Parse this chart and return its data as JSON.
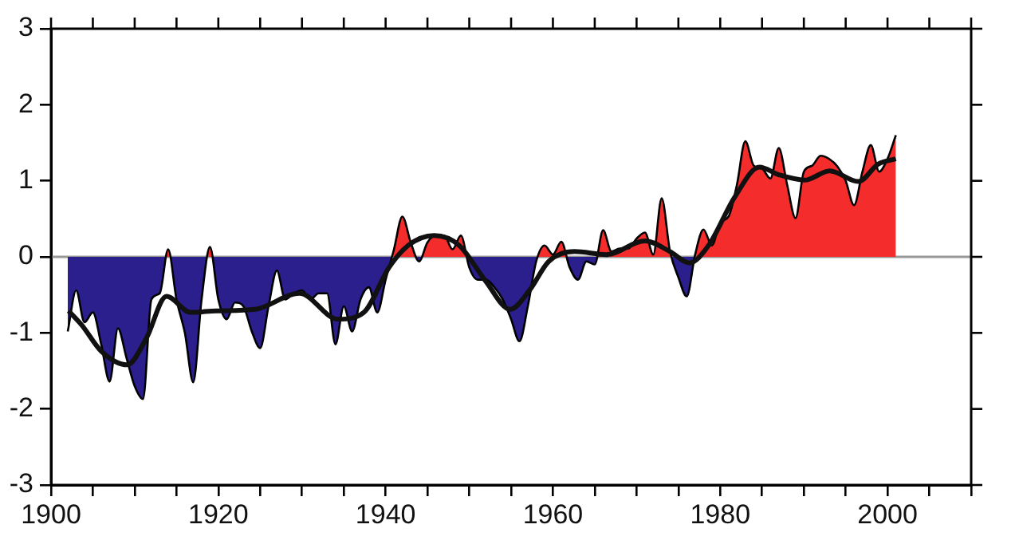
{
  "chart_data": {
    "type": "area",
    "xlim": [
      1900,
      2010
    ],
    "ylim": [
      -3,
      3
    ],
    "xticks": [
      1900,
      {
        "value": 1905,
        "label": null
      },
      {
        "value": 1910,
        "label": null
      },
      {
        "value": 1915,
        "label": null
      },
      1920,
      {
        "value": 1925,
        "label": null
      },
      {
        "value": 1930,
        "label": null
      },
      {
        "value": 1935,
        "label": null
      },
      1940,
      {
        "value": 1945,
        "label": null
      },
      {
        "value": 1950,
        "label": null
      },
      {
        "value": 1955,
        "label": null
      },
      1960,
      {
        "value": 1965,
        "label": null
      },
      {
        "value": 1970,
        "label": null
      },
      {
        "value": 1975,
        "label": null
      },
      1980,
      {
        "value": 1985,
        "label": null
      },
      {
        "value": 1990,
        "label": null
      },
      {
        "value": 1995,
        "label": null
      },
      2000,
      {
        "value": 2005,
        "label": null
      },
      {
        "value": 2010,
        "label": null
      }
    ],
    "yticks": [
      -3,
      -2,
      -1,
      0,
      1,
      2,
      3
    ],
    "grid": false,
    "legend": false,
    "marker": "none",
    "line_style": "solid",
    "ref_lines": [
      {
        "axis": "y",
        "value": 0,
        "color": "#999999"
      }
    ],
    "series": [
      {
        "color": "#000000",
        "x": [
          1902,
          1903,
          1904,
          1905,
          1906,
          1907,
          1908,
          1909,
          1910,
          1911,
          1912,
          1913,
          1914,
          1915,
          1916,
          1917,
          1918,
          1919,
          1920,
          1921,
          1922,
          1923,
          1924,
          1925,
          1926,
          1927,
          1928,
          1929,
          1930,
          1931,
          1932,
          1933,
          1934,
          1935,
          1936,
          1937,
          1938,
          1939,
          1940,
          1941,
          1942,
          1943,
          1944,
          1945,
          1946,
          1947,
          1948,
          1949,
          1950,
          1951,
          1952,
          1953,
          1954,
          1955,
          1956,
          1957,
          1958,
          1959,
          1960,
          1961,
          1962,
          1963,
          1964,
          1965,
          1966,
          1967,
          1968,
          1969,
          1970,
          1971,
          1972,
          1973,
          1974,
          1975,
          1976,
          1977,
          1978,
          1979,
          1980,
          1981,
          1982,
          1983,
          1984,
          1985,
          1986,
          1987,
          1988,
          1989,
          1990,
          1991,
          1992,
          1993,
          1994,
          1995,
          1996,
          1997,
          1998,
          1999,
          2000,
          2001
        ],
        "values": [
          -0.98,
          -0.44,
          -0.86,
          -0.73,
          -1.15,
          -1.64,
          -0.94,
          -1.32,
          -1.7,
          -1.87,
          -0.56,
          -0.48,
          0.1,
          -0.56,
          -1.0,
          -1.65,
          -0.56,
          0.13,
          -0.56,
          -0.82,
          -0.6,
          -0.65,
          -0.98,
          -1.2,
          -0.65,
          -0.18,
          -0.56,
          -0.48,
          -0.44,
          -0.56,
          -0.48,
          -0.48,
          -1.15,
          -0.65,
          -0.98,
          -0.56,
          -0.4,
          -0.73,
          -0.3,
          0.1,
          0.53,
          0.19,
          -0.06,
          0.19,
          0.28,
          0.28,
          0.1,
          0.28,
          -0.14,
          -0.3,
          -0.3,
          -0.4,
          -0.56,
          -0.82,
          -1.11,
          -0.65,
          -0.06,
          0.15,
          0.03,
          0.2,
          -0.14,
          -0.3,
          -0.06,
          -0.1,
          0.35,
          0.07,
          0.11,
          0.11,
          0.24,
          0.32,
          0.03,
          0.77,
          0.07,
          -0.27,
          -0.52,
          0.03,
          0.36,
          0.15,
          0.45,
          0.53,
          0.95,
          1.52,
          1.2,
          1.16,
          1.03,
          1.43,
          0.95,
          0.51,
          1.12,
          1.2,
          1.33,
          1.29,
          1.19,
          1.0,
          0.68,
          1.12,
          1.47,
          1.12,
          1.29,
          1.6
        ],
        "colors": [
          "#2b1f8e",
          "#2b1f8e",
          "#2b1f8e",
          "#2b1f8e",
          "#2b1f8e",
          "#2b1f8e",
          "#2b1f8e",
          "#2b1f8e",
          "#2b1f8e",
          "#2b1f8e",
          "#2b1f8e",
          "#2b1f8e",
          "#f42c2c",
          "#2b1f8e",
          "#2b1f8e",
          "#2b1f8e",
          "#2b1f8e",
          "#f42c2c",
          "#2b1f8e",
          "#2b1f8e",
          "#2b1f8e",
          "#2b1f8e",
          "#2b1f8e",
          "#2b1f8e",
          "#2b1f8e",
          "#2b1f8e",
          "#2b1f8e",
          "#2b1f8e",
          "#2b1f8e",
          "#2b1f8e",
          "#2b1f8e",
          "#2b1f8e",
          "#2b1f8e",
          "#2b1f8e",
          "#2b1f8e",
          "#2b1f8e",
          "#2b1f8e",
          "#2b1f8e",
          "#2b1f8e",
          "#f42c2c",
          "#f42c2c",
          "#f42c2c",
          "#2b1f8e",
          "#f42c2c",
          "#f42c2c",
          "#f42c2c",
          "#f42c2c",
          "#f42c2c",
          "#2b1f8e",
          "#2b1f8e",
          "#2b1f8e",
          "#2b1f8e",
          "#2b1f8e",
          "#2b1f8e",
          "#2b1f8e",
          "#2b1f8e",
          "#2b1f8e",
          "#f42c2c",
          "#f42c2c",
          "#f42c2c",
          "#2b1f8e",
          "#2b1f8e",
          "#2b1f8e",
          "#2b1f8e",
          "#f42c2c",
          "#f42c2c",
          "#f42c2c",
          "#f42c2c",
          "#f42c2c",
          "#f42c2c",
          "#f42c2c",
          "#f42c2c",
          "#f42c2c",
          "#2b1f8e",
          "#2b1f8e",
          "#f42c2c",
          "#f42c2c",
          "#f42c2c",
          "#f42c2c",
          "#f42c2c",
          "#f42c2c",
          "#f42c2c",
          "#f42c2c",
          "#f42c2c",
          "#f42c2c",
          "#f42c2c",
          "#f42c2c",
          "#f42c2c",
          "#f42c2c",
          "#f42c2c",
          "#f42c2c",
          "#f42c2c",
          "#f42c2c",
          "#f42c2c",
          "#f42c2c",
          "#f42c2c",
          "#f42c2c",
          "#f42c2c",
          "#f42c2c",
          "#f42c2c"
        ]
      },
      {
        "type": "line",
        "color": "#111111",
        "x": [
          1902.1,
          1903.7,
          1906.0,
          1909.1,
          1911.4,
          1913.8,
          1916.7,
          1919.8,
          1924.4,
          1929.7,
          1934.3,
          1937.4,
          1940.4,
          1942.7,
          1945.8,
          1948.8,
          1951.9,
          1954.9,
          1957.2,
          1959.5,
          1962.6,
          1966.4,
          1971.0,
          1974.0,
          1976.3,
          1978.6,
          1981.7,
          1984.7,
          1987.0,
          1990.1,
          1993.1,
          1996.5,
          1998.9,
          2001.0
        ],
        "values": [
          -0.71,
          -0.9,
          -1.24,
          -1.42,
          -1.07,
          -0.52,
          -0.73,
          -0.71,
          -0.69,
          -0.48,
          -0.82,
          -0.73,
          -0.14,
          0.15,
          0.28,
          0.15,
          -0.31,
          -0.69,
          -0.44,
          -0.06,
          0.07,
          0.03,
          0.21,
          0.07,
          -0.08,
          0.15,
          0.78,
          1.18,
          1.08,
          1.01,
          1.13,
          0.99,
          1.22,
          1.29
        ]
      }
    ]
  }
}
